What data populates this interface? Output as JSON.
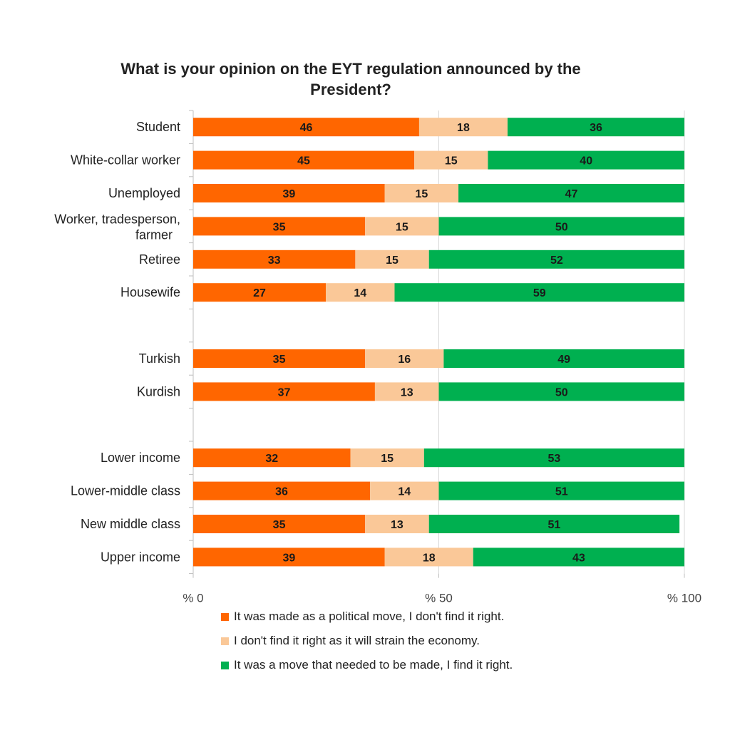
{
  "chart_data": {
    "type": "bar",
    "orientation": "horizontal",
    "stacked": true,
    "title": "What is your opinion on the EYT regulation announced by the President?",
    "categories": [
      "Student",
      "White-collar worker",
      "Unemployed",
      "Worker, tradesperson, farmer",
      "Retiree",
      "Housewife",
      "",
      "Turkish",
      "Kurdish",
      "",
      "Lower income",
      "Lower-middle class",
      "New middle class",
      "Upper income"
    ],
    "series": [
      {
        "name": "It was made as a political move, I don't find it right.",
        "color": "#ff6600",
        "values": [
          46,
          45,
          39,
          35,
          33,
          27,
          null,
          35,
          37,
          null,
          32,
          36,
          35,
          39
        ]
      },
      {
        "name": "I don't find it right as it will strain the economy.",
        "color": "#fac898",
        "values": [
          18,
          15,
          15,
          15,
          15,
          14,
          null,
          16,
          13,
          null,
          15,
          14,
          13,
          18
        ]
      },
      {
        "name": "It was a move that needed to be made, I find it right.",
        "color": "#00b050",
        "values": [
          36,
          40,
          47,
          50,
          52,
          59,
          null,
          49,
          50,
          null,
          53,
          51,
          51,
          43
        ]
      }
    ],
    "x_ticks": [
      "% 0",
      "% 50",
      "% 100"
    ],
    "xlim": [
      0,
      100
    ],
    "grid": "vertical",
    "legend_position": "bottom"
  }
}
